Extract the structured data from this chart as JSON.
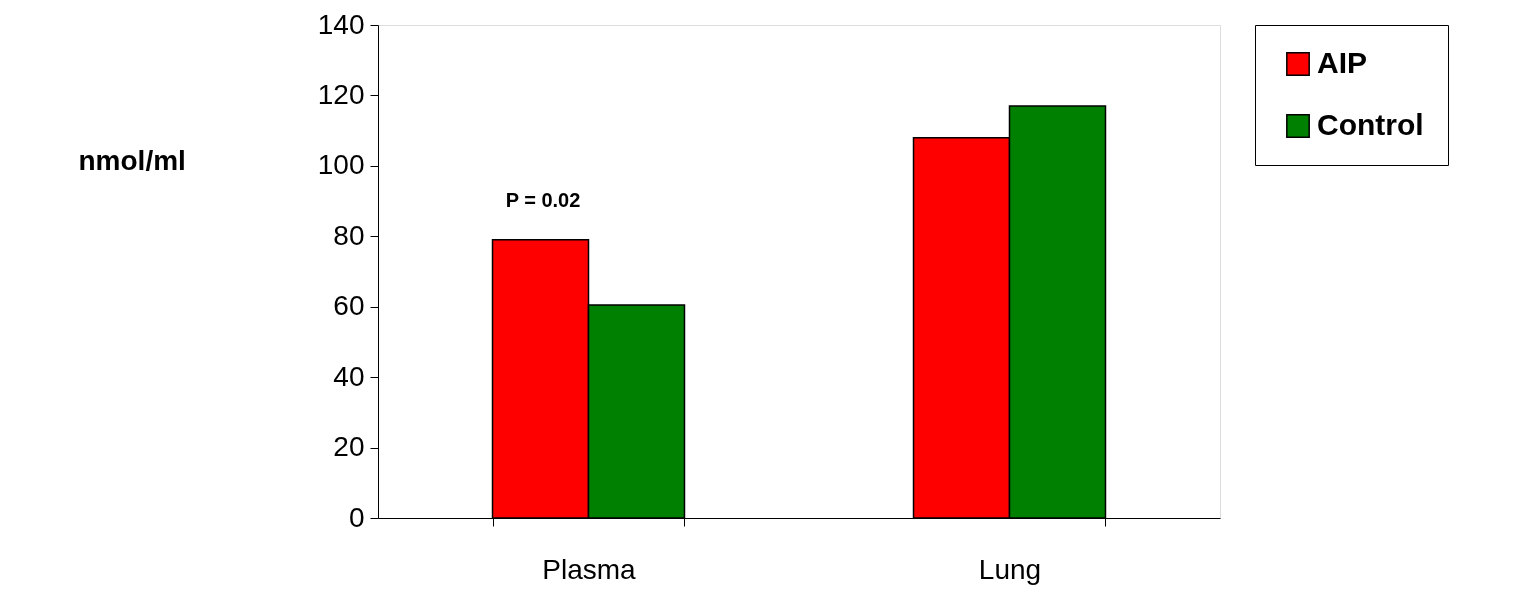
{
  "chart_data": {
    "type": "bar",
    "ylabel": "nmol/ml",
    "categories": [
      "Plasma",
      "Lung"
    ],
    "series": [
      {
        "name": "AIP",
        "color": "#ff0000",
        "values": [
          79,
          108
        ]
      },
      {
        "name": "Control",
        "color": "#008000",
        "values": [
          60.5,
          117
        ]
      }
    ],
    "ylim": [
      0,
      140
    ],
    "yticks": [
      0,
      20,
      40,
      60,
      80,
      100,
      120,
      140
    ],
    "annotations": [
      "P = 0.02"
    ],
    "legend": "top right",
    "grid": false
  }
}
